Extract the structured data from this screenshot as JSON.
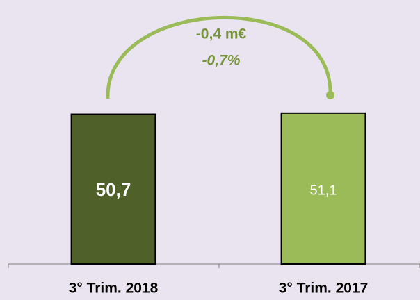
{
  "chart_data": {
    "type": "bar",
    "categories": [
      "3° Trim. 2018",
      "3° Trim. 2017"
    ],
    "values": [
      50.7,
      51.1
    ],
    "value_labels": [
      "50,7",
      "51,1"
    ],
    "colors": [
      "#4f6128",
      "#9bbb59"
    ],
    "ylim": [
      0,
      60
    ],
    "annotations": [
      "-0,4 m€",
      "-0,7%"
    ]
  }
}
